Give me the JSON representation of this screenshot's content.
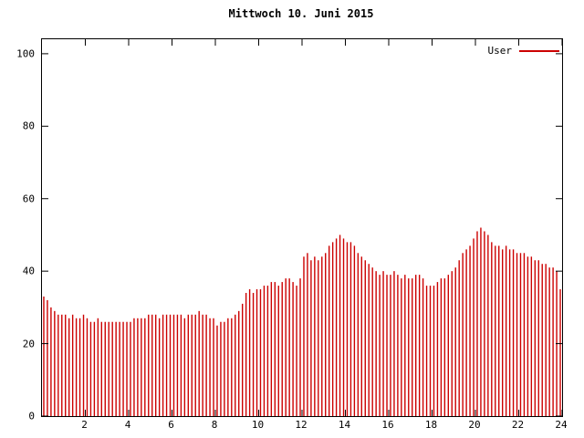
{
  "chart_data": {
    "type": "bar",
    "title": "Mittwoch 10. Juni 2015",
    "xlabel": "",
    "ylabel": "",
    "grid": false,
    "legend_position": "top-right",
    "xlim": [
      0,
      24
    ],
    "ylim": [
      0,
      104
    ],
    "xticks": [
      2,
      4,
      6,
      8,
      10,
      12,
      14,
      16,
      18,
      20,
      22,
      24
    ],
    "yticks": [
      0,
      20,
      40,
      60,
      80,
      100
    ],
    "x_unit": "hour-of-day",
    "sample_interval_minutes": 10,
    "series": [
      {
        "name": "User",
        "color": "#cc0000",
        "values": [
          33,
          32,
          30,
          29,
          28,
          28,
          28,
          27,
          28,
          27,
          27,
          28,
          27,
          26,
          26,
          27,
          26,
          26,
          26,
          26,
          26,
          26,
          26,
          26,
          26,
          27,
          27,
          27,
          27,
          28,
          28,
          28,
          27,
          28,
          28,
          28,
          28,
          28,
          28,
          27,
          28,
          28,
          28,
          29,
          28,
          28,
          27,
          27,
          25,
          26,
          26,
          27,
          27,
          28,
          29,
          31,
          34,
          35,
          34,
          35,
          35,
          36,
          36,
          37,
          37,
          36,
          37,
          38,
          38,
          37,
          36,
          38,
          44,
          45,
          43,
          44,
          43,
          44,
          45,
          47,
          48,
          49,
          50,
          49,
          48,
          48,
          47,
          45,
          44,
          43,
          42,
          41,
          40,
          39,
          40,
          39,
          39,
          40,
          39,
          38,
          39,
          38,
          38,
          39,
          39,
          38,
          36,
          36,
          36,
          37,
          38,
          38,
          39,
          40,
          41,
          43,
          45,
          46,
          47,
          49,
          51,
          52,
          51,
          50,
          48,
          47,
          47,
          46,
          47,
          46,
          46,
          45,
          45,
          45,
          44,
          44,
          43,
          43,
          42,
          42,
          41,
          41,
          40,
          35
        ]
      }
    ]
  }
}
